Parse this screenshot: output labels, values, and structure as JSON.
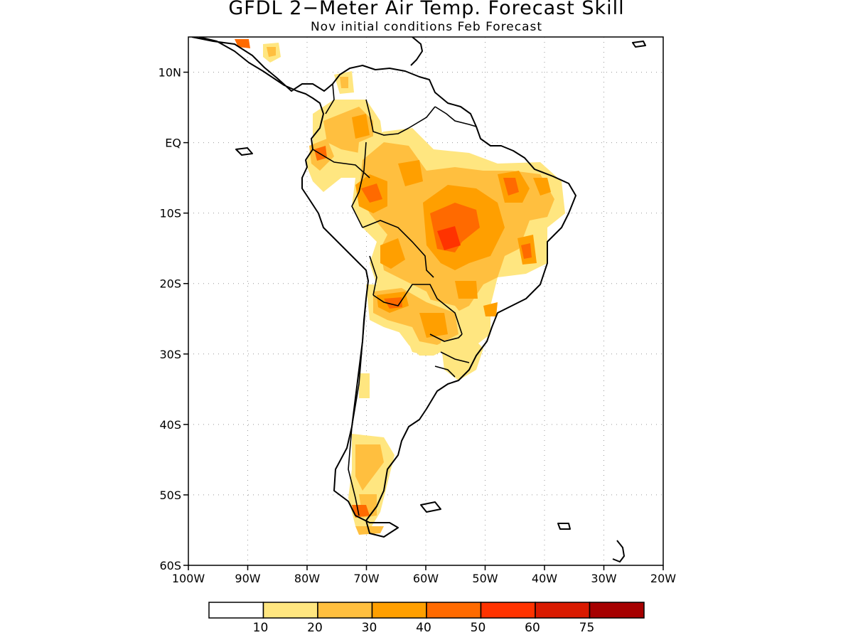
{
  "title": "GFDL 2−Meter Air Temp. Forecast Skill",
  "subtitle": "Nov initial conditions  Feb Forecast",
  "map": {
    "region": "South America",
    "lon_range": [
      -100,
      -20
    ],
    "lat_range": [
      -60,
      15
    ],
    "x_ticks": [
      "100W",
      "90W",
      "80W",
      "70W",
      "60W",
      "50W",
      "40W",
      "30W",
      "20W"
    ],
    "y_ticks": [
      "10N",
      "EQ",
      "10S",
      "20S",
      "30S",
      "40S",
      "50S",
      "60S"
    ],
    "grid": true
  },
  "legend": {
    "bins": [
      {
        "color": "#ffffff"
      },
      {
        "color": "#ffe680"
      },
      {
        "color": "#ffbf3f"
      },
      {
        "color": "#ff9f00"
      },
      {
        "color": "#ff6a00"
      },
      {
        "color": "#ff3300"
      },
      {
        "color": "#d91a00"
      },
      {
        "color": "#a60000"
      }
    ],
    "labels": [
      "10",
      "20",
      "30",
      "40",
      "50",
      "60",
      "75"
    ]
  }
}
